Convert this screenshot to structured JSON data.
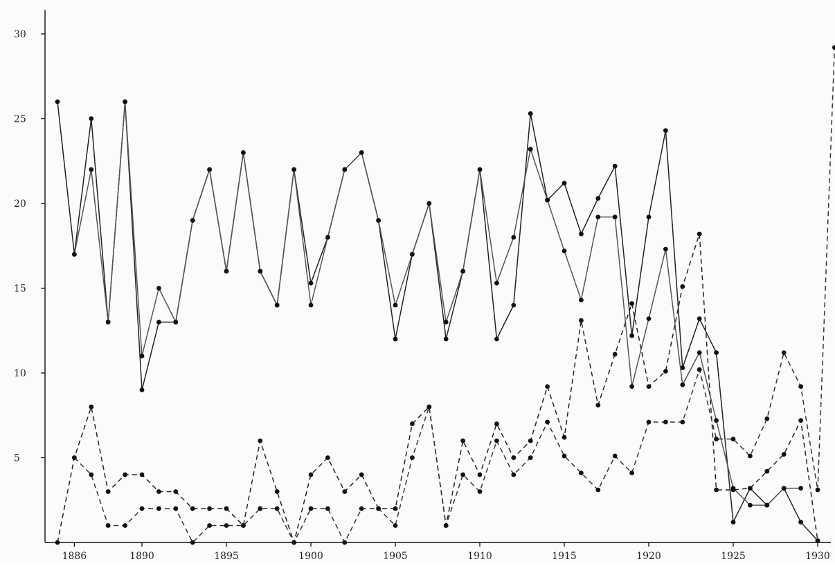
{
  "chart_data": {
    "type": "line",
    "title": "",
    "xlabel": "",
    "ylabel": "",
    "xlim": [
      1886,
      1931
    ],
    "ylim": [
      0,
      30
    ],
    "grid": false,
    "legend": "none",
    "x_tick_labels": [
      "1886",
      "1890",
      "1895",
      "1900",
      "1905",
      "1910",
      "1915",
      "1920",
      "1925",
      "1930"
    ],
    "x_tick_values": [
      1886,
      1890,
      1895,
      1900,
      1905,
      1910,
      1915,
      1920,
      1925,
      1930
    ],
    "y_tick_labels": [
      "5",
      "10",
      "15",
      "20",
      "25",
      "30"
    ],
    "y_tick_values": [
      5,
      10,
      15,
      20,
      25,
      30
    ],
    "series": [
      {
        "style": "solid",
        "color": "#222222",
        "points": [
          [
            1885,
            26
          ],
          [
            1886,
            17
          ],
          [
            1887,
            25
          ],
          [
            1888,
            13
          ],
          [
            1889,
            26
          ],
          [
            1890,
            9
          ],
          [
            1891,
            13
          ],
          [
            1892,
            13
          ],
          [
            1893,
            19
          ],
          [
            1894,
            22
          ],
          [
            1895,
            16
          ],
          [
            1896,
            23
          ],
          [
            1897,
            16
          ],
          [
            1898,
            14
          ],
          [
            1899,
            22
          ],
          [
            1900,
            15.3
          ],
          [
            1901,
            18
          ],
          [
            1902,
            22
          ],
          [
            1903,
            23
          ],
          [
            1904,
            19
          ],
          [
            1905,
            12
          ],
          [
            1906,
            17
          ],
          [
            1907,
            20
          ],
          [
            1908,
            12
          ],
          [
            1909,
            16
          ],
          [
            1910,
            22
          ],
          [
            1911,
            12
          ],
          [
            1912,
            14
          ],
          [
            1913,
            25.3
          ],
          [
            1914,
            20.2
          ],
          [
            1915,
            21.2
          ],
          [
            1916,
            18.2
          ],
          [
            1917,
            20.3
          ],
          [
            1918,
            22.2
          ],
          [
            1919,
            12.2
          ],
          [
            1920,
            19.2
          ],
          [
            1921,
            24.3
          ],
          [
            1922,
            10.3
          ],
          [
            1923,
            13.2
          ],
          [
            1924,
            11.2
          ],
          [
            1925,
            1.2
          ],
          [
            1926,
            3.2
          ],
          [
            1927,
            2.2
          ],
          [
            1928,
            3.2
          ],
          [
            1929,
            1.2
          ],
          [
            1930,
            0.1
          ]
        ]
      },
      {
        "style": "solid",
        "color": "#555555",
        "points": [
          [
            1886,
            17
          ],
          [
            1887,
            22
          ],
          [
            1888,
            13
          ],
          [
            1889,
            26
          ],
          [
            1890,
            11
          ],
          [
            1891,
            15
          ],
          [
            1892,
            13
          ],
          [
            1893,
            19
          ],
          [
            1894,
            22
          ],
          [
            1895,
            16
          ],
          [
            1896,
            23
          ],
          [
            1897,
            16
          ],
          [
            1898,
            14
          ],
          [
            1899,
            22
          ],
          [
            1900,
            14
          ],
          [
            1901,
            18
          ],
          [
            1902,
            22
          ],
          [
            1903,
            23
          ],
          [
            1904,
            19
          ],
          [
            1905,
            14
          ],
          [
            1906,
            17
          ],
          [
            1907,
            20
          ],
          [
            1908,
            13
          ],
          [
            1909,
            16
          ],
          [
            1910,
            22
          ],
          [
            1911,
            15.3
          ],
          [
            1912,
            18
          ],
          [
            1913,
            23.2
          ],
          [
            1914,
            20.2
          ],
          [
            1915,
            17.2
          ],
          [
            1916,
            14.3
          ],
          [
            1917,
            19.2
          ],
          [
            1918,
            19.2
          ],
          [
            1919,
            9.2
          ],
          [
            1920,
            13.2
          ],
          [
            1921,
            17.3
          ],
          [
            1922,
            9.3
          ],
          [
            1923,
            11.2
          ],
          [
            1924,
            7.2
          ],
          [
            1925,
            3.2
          ],
          [
            1926,
            2.2
          ],
          [
            1927,
            2.2
          ],
          [
            1928,
            3.2
          ],
          [
            1929,
            3.2
          ]
        ]
      },
      {
        "style": "dashed",
        "color": "#222222",
        "points": [
          [
            1885,
            0
          ],
          [
            1886,
            5
          ],
          [
            1887,
            8
          ],
          [
            1888,
            3
          ],
          [
            1889,
            4
          ],
          [
            1890,
            4
          ],
          [
            1891,
            3
          ],
          [
            1892,
            3
          ],
          [
            1893,
            2
          ],
          [
            1894,
            2
          ],
          [
            1895,
            2
          ],
          [
            1896,
            1
          ],
          [
            1897,
            6
          ],
          [
            1898,
            3
          ],
          [
            1899,
            0
          ],
          [
            1900,
            4
          ],
          [
            1901,
            5
          ],
          [
            1902,
            3
          ],
          [
            1903,
            4
          ],
          [
            1904,
            2
          ],
          [
            1905,
            2
          ],
          [
            1906,
            7
          ],
          [
            1907,
            8
          ],
          [
            1908,
            1
          ],
          [
            1909,
            6
          ],
          [
            1910,
            4
          ],
          [
            1911,
            7
          ],
          [
            1912,
            5
          ],
          [
            1913,
            6
          ],
          [
            1914,
            9.2
          ],
          [
            1915,
            6.2
          ],
          [
            1916,
            13.1
          ],
          [
            1917,
            8.1
          ],
          [
            1918,
            11.1
          ],
          [
            1919,
            14.1
          ],
          [
            1920,
            9.2
          ],
          [
            1921,
            10.1
          ],
          [
            1922,
            15.1
          ],
          [
            1923,
            18.2
          ],
          [
            1924,
            3.1
          ],
          [
            1925,
            3.1
          ],
          [
            1926,
            3.2
          ],
          [
            1927,
            4.2
          ],
          [
            1928,
            5.2
          ],
          [
            1929,
            7.2
          ],
          [
            1930,
            0.1
          ]
        ]
      },
      {
        "style": "dashed",
        "color": "#333333",
        "points": [
          [
            1886,
            5
          ],
          [
            1887,
            4
          ],
          [
            1888,
            1
          ],
          [
            1889,
            1
          ],
          [
            1890,
            2
          ],
          [
            1891,
            2
          ],
          [
            1892,
            2
          ],
          [
            1893,
            0
          ],
          [
            1894,
            1
          ],
          [
            1895,
            1
          ],
          [
            1896,
            1
          ],
          [
            1897,
            2
          ],
          [
            1898,
            2
          ],
          [
            1899,
            0
          ],
          [
            1900,
            2
          ],
          [
            1901,
            2
          ],
          [
            1902,
            0
          ],
          [
            1903,
            2
          ],
          [
            1904,
            2
          ],
          [
            1905,
            1
          ],
          [
            1906,
            5
          ],
          [
            1907,
            8
          ],
          [
            1908,
            1
          ],
          [
            1909,
            4
          ],
          [
            1910,
            3
          ],
          [
            1911,
            6
          ],
          [
            1912,
            4
          ],
          [
            1913,
            5
          ],
          [
            1914,
            7.1
          ],
          [
            1915,
            5.1
          ],
          [
            1916,
            4.1
          ],
          [
            1917,
            3.1
          ],
          [
            1918,
            5.1
          ],
          [
            1919,
            4.1
          ],
          [
            1920,
            7.1
          ],
          [
            1921,
            7.1
          ],
          [
            1922,
            7.1
          ],
          [
            1923,
            10.2
          ],
          [
            1924,
            6.1
          ],
          [
            1925,
            6.1
          ],
          [
            1926,
            5.1
          ],
          [
            1927,
            7.3
          ],
          [
            1928,
            11.2
          ],
          [
            1929,
            9.2
          ],
          [
            1930,
            3.1
          ],
          [
            1931,
            29.2
          ]
        ]
      }
    ]
  }
}
